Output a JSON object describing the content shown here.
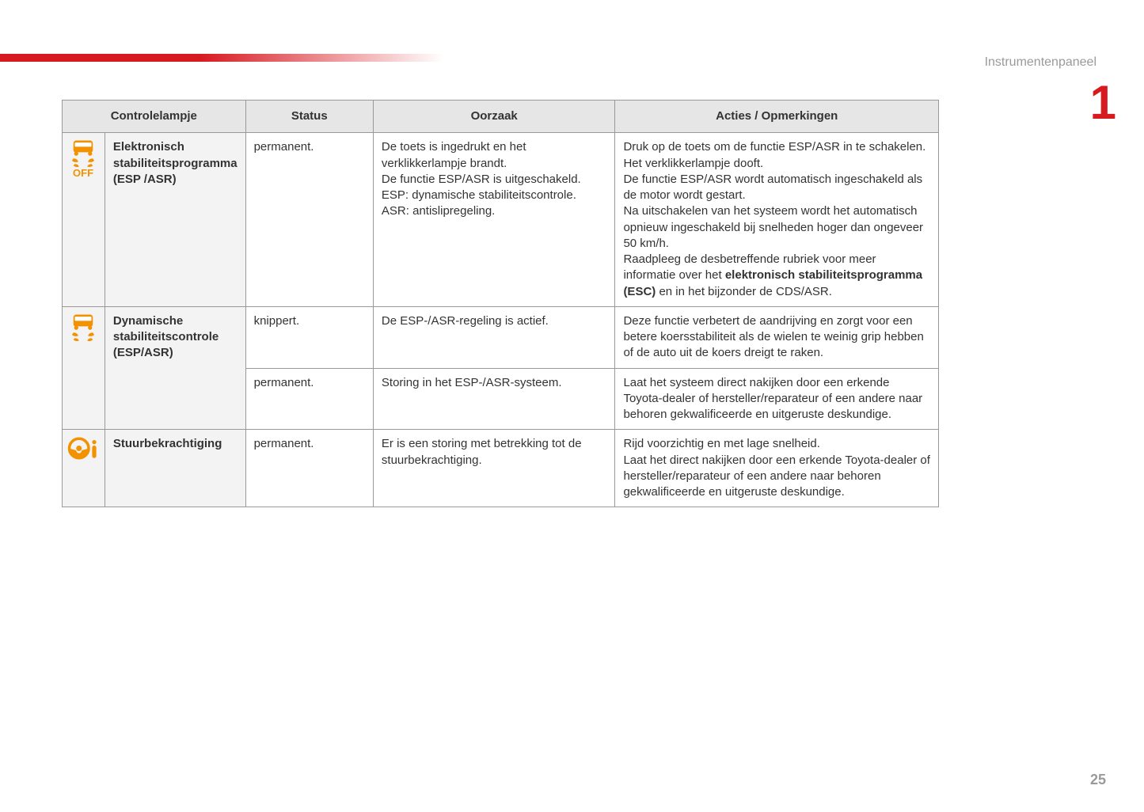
{
  "page": {
    "section_label": "Instrumentenpaneel",
    "chapter_number": "1",
    "page_number": "25"
  },
  "colors": {
    "accent_red": "#d71920",
    "icon_orange": "#f39200",
    "header_grey": "#e6e6e6",
    "name_bg_grey": "#f3f3f3",
    "border_grey": "#999999",
    "text": "#333333",
    "muted": "#9a9a9a"
  },
  "table": {
    "headers": {
      "lamp": "Controlelampje",
      "status": "Status",
      "cause": "Oorzaak",
      "actions": "Acties / Opmerkingen"
    },
    "rows": [
      {
        "icon": "esp-off",
        "name": "Elektronisch stabiliteitsprogramma (ESP /ASR)",
        "status": "permanent.",
        "cause": "De toets is ingedrukt en het verklikkerlampje brandt.\nDe functie ESP/ASR is uitgeschakeld.\nESP: dynamische stabiliteitscontrole.\nASR: antislipregeling.",
        "action_pre": "Druk op de toets om de functie ESP/ASR in te schakelen. Het verklikkerlampje dooft.\nDe functie ESP/ASR wordt automatisch ingeschakeld als de motor wordt gestart.\nNa uitschakelen van het systeem wordt het automatisch opnieuw ingeschakeld bij snelheden hoger dan ongeveer 50 km/h.\nRaadpleeg de desbetreffende rubriek voor meer informatie over het ",
        "action_bold": "elektronisch stabiliteitsprogramma (ESC)",
        "action_post": " en in het bijzonder de CDS/ASR."
      },
      {
        "icon": "esp-on",
        "name": "Dynamische stabiliteitscontrole (ESP/ASR)",
        "status": "knippert.",
        "cause": "De ESP-/ASR-regeling is actief.",
        "action_pre": "Deze functie verbetert de aandrijving en zorgt voor een betere koersstabiliteit als de wielen te weinig grip hebben of de auto uit de koers dreigt te raken.",
        "action_bold": "",
        "action_post": ""
      },
      {
        "icon": "",
        "name": "",
        "status": "permanent.",
        "cause": "Storing in het ESP-/ASR-systeem.",
        "action_pre": "Laat het systeem direct nakijken door een erkende Toyota-dealer of hersteller/reparateur of een andere naar behoren gekwalificeerde en uitgeruste deskundige.",
        "action_bold": "",
        "action_post": ""
      },
      {
        "icon": "steering",
        "name": "Stuurbekrachtiging",
        "status": "permanent.",
        "cause": "Er is een storing met betrekking tot de stuurbekrachtiging.",
        "action_pre": "Rijd voorzichtig en met lage snelheid.\nLaat het direct nakijken door een erkende Toyota-dealer of hersteller/reparateur of een andere naar behoren gekwalificeerde en uitgeruste deskundige.",
        "action_bold": "",
        "action_post": ""
      }
    ]
  }
}
